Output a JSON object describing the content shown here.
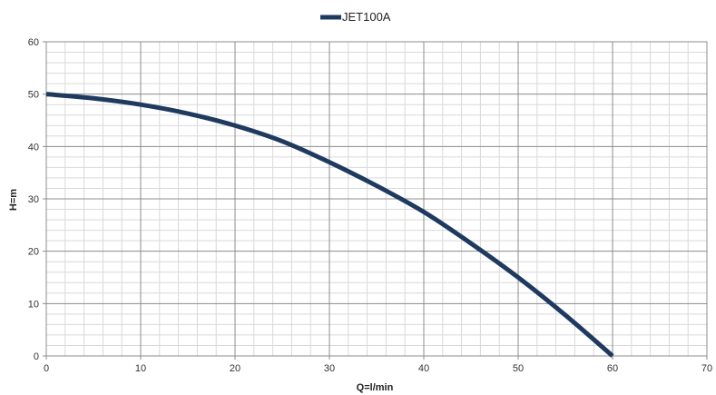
{
  "chart_data": {
    "type": "line",
    "title": "",
    "xlabel": "Q=l/min",
    "ylabel": "H=m",
    "xlim": [
      0,
      70
    ],
    "ylim": [
      0,
      60
    ],
    "x_major_step": 10,
    "y_major_step": 10,
    "x_minor_step": 2,
    "y_minor_step": 2,
    "x_ticks": [
      "0",
      "10",
      "20",
      "30",
      "40",
      "50",
      "60",
      "70"
    ],
    "y_ticks": [
      "0",
      "10",
      "20",
      "30",
      "40",
      "50",
      "60"
    ],
    "grid": true,
    "legend_position": "top-center",
    "series": [
      {
        "name": "JET100A",
        "color": "#1f3a5f",
        "x": [
          0,
          5,
          10,
          15,
          20,
          25,
          30,
          35,
          40,
          45,
          50,
          55,
          60
        ],
        "y": [
          50,
          49.2,
          48,
          46.3,
          44,
          41,
          37,
          32.5,
          27.5,
          21.5,
          15,
          7.8,
          0
        ]
      }
    ]
  }
}
